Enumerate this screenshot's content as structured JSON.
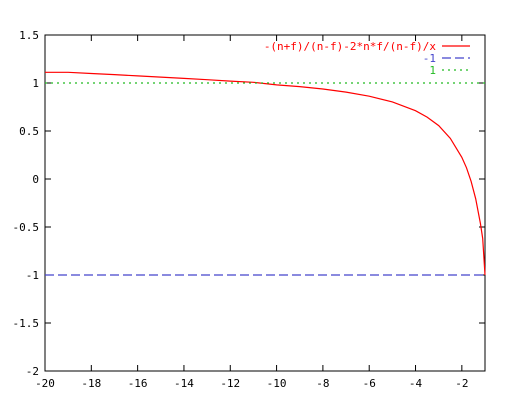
{
  "chart_data": {
    "type": "line",
    "xlim": [
      -20,
      -1
    ],
    "ylim": [
      -2,
      1.5
    ],
    "xticks": [
      -20,
      -18,
      -16,
      -14,
      -12,
      -10,
      -8,
      -6,
      -4,
      -2
    ],
    "yticks": [
      -2,
      -1.5,
      -1,
      -0.5,
      0,
      0.5,
      1,
      1.5
    ],
    "xtick_labels": [
      "-20",
      "-18",
      "-16",
      "-14",
      "-12",
      "-10",
      "-8",
      "-6",
      "-4",
      "-2"
    ],
    "ytick_labels": [
      "-2",
      "-1.5",
      "-1",
      "-0.5",
      "0",
      "0.5",
      "1",
      "1.5"
    ],
    "grid": false,
    "legend_position": "top-right",
    "series": [
      {
        "name": "-(n+f)/(n-f)-2*n*f/(n-f)/x",
        "color": "#ff0000",
        "style": "solid",
        "x": [
          -20,
          -19,
          -18,
          -17,
          -16,
          -15,
          -14,
          -13,
          -12,
          -11,
          -10,
          -9,
          -8,
          -7,
          -6,
          -5,
          -4,
          -3.5,
          -3,
          -2.5,
          -2,
          -1.8,
          -1.6,
          -1.4,
          -1.2,
          -1.1,
          -1.0
        ],
        "y": [
          1.111,
          1.111,
          1.099,
          1.087,
          1.074,
          1.061,
          1.048,
          1.034,
          1.02,
          1.007,
          0.98,
          0.962,
          0.937,
          0.905,
          0.863,
          0.803,
          0.711,
          0.645,
          0.556,
          0.424,
          0.226,
          0.117,
          -0.024,
          -0.206,
          -0.463,
          -0.62,
          -1.0
        ]
      },
      {
        "name": "-1",
        "color": "#4444cc",
        "style": "dashed",
        "x": [
          -20,
          -1
        ],
        "y": [
          -1,
          -1
        ]
      },
      {
        "name": "1",
        "color": "#22bb22",
        "style": "dotted",
        "x": [
          -20,
          -1
        ],
        "y": [
          1,
          1
        ]
      }
    ]
  }
}
